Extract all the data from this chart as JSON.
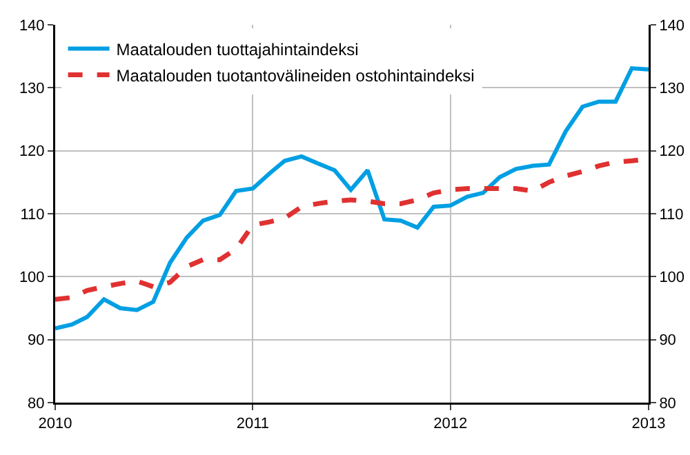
{
  "chart_data": {
    "type": "line",
    "x": [
      "2010-01",
      "2010-02",
      "2010-03",
      "2010-04",
      "2010-05",
      "2010-06",
      "2010-07",
      "2010-08",
      "2010-09",
      "2010-10",
      "2010-11",
      "2010-12",
      "2011-01",
      "2011-02",
      "2011-03",
      "2011-04",
      "2011-05",
      "2011-06",
      "2011-07",
      "2011-08",
      "2011-09",
      "2011-10",
      "2011-11",
      "2011-12",
      "2012-01",
      "2012-02",
      "2012-03",
      "2012-04",
      "2012-05",
      "2012-06",
      "2012-07",
      "2012-08",
      "2012-09",
      "2012-10",
      "2012-11",
      "2012-12",
      "2013-01"
    ],
    "series": [
      {
        "name": "Maatalouden tuottajahintaindeksi",
        "color": "#009fe3",
        "line_style": "solid",
        "values": [
          91.8,
          92.4,
          93.6,
          96.4,
          95,
          94.7,
          96,
          102.2,
          106.2,
          108.9,
          109.8,
          113.6,
          114,
          116.4,
          118.4,
          119.1,
          118,
          116.9,
          113.8,
          116.9,
          109.1,
          108.9,
          107.8,
          111.1,
          111.3,
          112.7,
          113.3,
          115.8,
          117.1,
          117.6,
          117.8,
          123.1,
          127,
          127.8,
          127.8,
          133.1,
          132.9
        ]
      },
      {
        "name": "Maatalouden tuotantovälineiden ostohintaindeksi",
        "color": "#e03131",
        "line_style": "dashed",
        "values": [
          96.4,
          96.7,
          97.8,
          98.4,
          98.9,
          99.3,
          98.4,
          99.1,
          101.6,
          102.7,
          102.7,
          104.4,
          108.2,
          108.7,
          109.3,
          111.1,
          111.6,
          112,
          112.2,
          112,
          111.6,
          111.6,
          112.2,
          113.3,
          113.8,
          114,
          114,
          114,
          114,
          113.6,
          115,
          116,
          116.7,
          117.6,
          118.2,
          118.4,
          118.7
        ]
      }
    ],
    "xlim": [
      "2010-01",
      "2013-01"
    ],
    "xticks": [
      {
        "value": "2010-01",
        "label": "2010"
      },
      {
        "value": "2011-01",
        "label": "2011"
      },
      {
        "value": "2012-01",
        "label": "2012"
      },
      {
        "value": "2013-01",
        "label": "2013"
      }
    ],
    "ylim": [
      80,
      140
    ],
    "yticks": [
      80,
      90,
      100,
      110,
      120,
      130,
      140
    ],
    "y2lim": [
      80,
      140
    ],
    "y2ticks": [
      80,
      90,
      100,
      110,
      120,
      130,
      140
    ],
    "grid": true,
    "legend": "top left",
    "marker": "none"
  }
}
